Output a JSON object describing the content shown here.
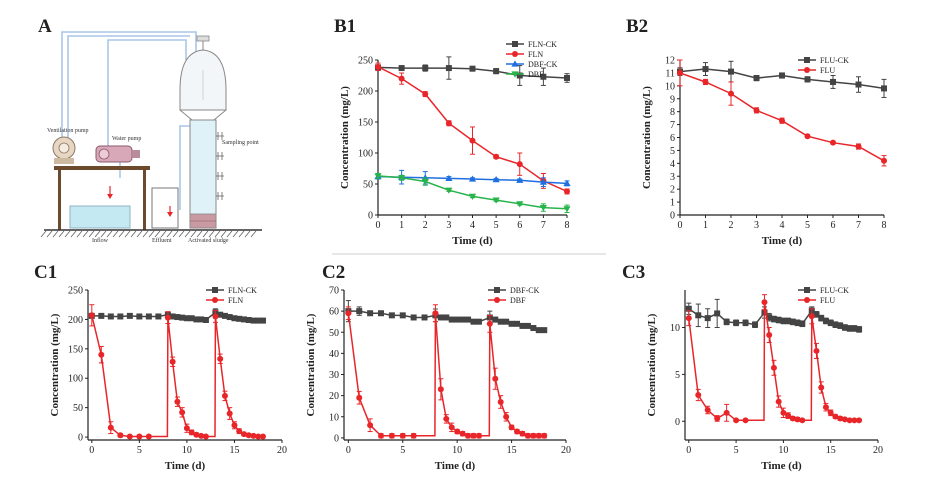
{
  "colors": {
    "black": "#444444",
    "red": "#e8262a",
    "blue": "#1f6fe0",
    "green": "#27b44a"
  },
  "schematic": {
    "label": "A",
    "texts": {
      "ventilation": "Ventilation pump",
      "water": "Water pump",
      "sampling": "Sampling point",
      "inflow": "Inflow",
      "effluent": "Effluent",
      "sludge": "Activated sludge"
    }
  },
  "chart_data": [
    {
      "id": "B1",
      "label": "B1",
      "type": "line",
      "xlabel": "Time (d)",
      "ylabel": "Concentration (mg/L)",
      "xlim": [
        0,
        8
      ],
      "ylim": [
        0,
        250
      ],
      "xticks": [
        0,
        1,
        2,
        3,
        4,
        5,
        6,
        7,
        8
      ],
      "yticks": [
        0,
        50,
        100,
        150,
        200,
        250
      ],
      "legend_position": "top-right",
      "series": [
        {
          "name": "FLN-CK",
          "color": "#444444",
          "marker": "square",
          "x": [
            0,
            1,
            2,
            3,
            4,
            5,
            6,
            7,
            8
          ],
          "y": [
            238,
            237,
            237,
            237,
            236,
            232,
            225,
            223,
            221
          ],
          "err": [
            4,
            3,
            5,
            18,
            3,
            4,
            16,
            14,
            7
          ]
        },
        {
          "name": "FLN",
          "color": "#e8262a",
          "marker": "circle",
          "x": [
            0,
            1,
            2,
            3,
            4,
            5,
            6,
            7,
            8
          ],
          "y": [
            239,
            220,
            195,
            148,
            120,
            94,
            82,
            55,
            38
          ],
          "err": [
            6,
            9,
            4,
            4,
            22,
            3,
            18,
            12,
            4
          ]
        },
        {
          "name": "DBF-CK",
          "color": "#1f6fe0",
          "marker": "triangle-up",
          "x": [
            0,
            1,
            2,
            3,
            4,
            5,
            6,
            7,
            8
          ],
          "y": [
            62,
            61,
            60,
            59,
            58,
            57,
            56,
            53,
            51
          ],
          "err": [
            4,
            11,
            10,
            3,
            2,
            2,
            2,
            7,
            4
          ]
        },
        {
          "name": "DBF",
          "color": "#27b44a",
          "marker": "triangle-down",
          "x": [
            0,
            1,
            2,
            3,
            4,
            5,
            6,
            7,
            8
          ],
          "y": [
            63,
            60,
            54,
            40,
            30,
            24,
            18,
            12,
            10
          ],
          "err": [
            4,
            4,
            6,
            2,
            2,
            2,
            2,
            6,
            6
          ]
        }
      ]
    },
    {
      "id": "B2",
      "label": "B2",
      "type": "line",
      "xlabel": "Time (d)",
      "ylabel": "Concentration (mg/L)",
      "xlim": [
        0,
        8
      ],
      "ylim": [
        0,
        12
      ],
      "xticks": [
        0,
        1,
        2,
        3,
        4,
        5,
        6,
        7,
        8
      ],
      "yticks": [
        0,
        1,
        2,
        3,
        4,
        5,
        6,
        7,
        8,
        9,
        10,
        11,
        12
      ],
      "legend_position": "top-right",
      "series": [
        {
          "name": "FLU-CK",
          "color": "#444444",
          "marker": "square",
          "x": [
            0,
            1,
            2,
            3,
            4,
            5,
            6,
            7,
            8
          ],
          "y": [
            11.1,
            11.3,
            11.1,
            10.6,
            10.8,
            10.5,
            10.3,
            10.1,
            9.8
          ],
          "err": [
            0.3,
            0.5,
            0.8,
            0.2,
            0.2,
            0.2,
            0.5,
            0.6,
            0.7
          ]
        },
        {
          "name": "FLU",
          "color": "#e8262a",
          "marker": "circle",
          "x": [
            0,
            1,
            2,
            3,
            4,
            5,
            6,
            7,
            8
          ],
          "y": [
            11.0,
            10.3,
            9.4,
            8.1,
            7.3,
            6.1,
            5.6,
            5.3,
            4.2
          ],
          "err": [
            1.0,
            0.2,
            0.9,
            0.2,
            0.2,
            0.1,
            0.1,
            0.2,
            0.4
          ]
        }
      ]
    },
    {
      "id": "C1",
      "label": "C1",
      "type": "line",
      "xlabel": "Time (d)",
      "ylabel": "Concentration (mg/L)",
      "xlim": [
        -0.4,
        20
      ],
      "ylim": [
        -5,
        250
      ],
      "xticks": [
        0,
        5,
        10,
        15,
        20
      ],
      "yticks": [
        0,
        50,
        100,
        150,
        200,
        250
      ],
      "legend_position": "top-right",
      "series": [
        {
          "name": "FLN-CK",
          "color": "#444444",
          "marker": "square",
          "x": [
            0,
            1,
            2,
            3,
            4,
            5,
            6,
            7,
            8,
            8.5,
            9,
            9.5,
            10,
            10.5,
            11,
            11.5,
            12,
            13,
            13.5,
            14,
            14.5,
            15,
            15.5,
            16,
            16.5,
            17,
            17.5,
            18
          ],
          "y": [
            206,
            206,
            205,
            205,
            206,
            205,
            205,
            205,
            208,
            205,
            204,
            203,
            202,
            202,
            200,
            200,
            199,
            212,
            208,
            206,
            204,
            202,
            201,
            200,
            199,
            198,
            198,
            198
          ],
          "err": [
            3,
            2,
            2,
            2,
            2,
            2,
            2,
            2,
            5,
            3,
            2,
            2,
            2,
            2,
            2,
            2,
            2,
            6,
            3,
            2,
            2,
            2,
            2,
            2,
            2,
            2,
            2,
            2
          ]
        },
        {
          "name": "FLN",
          "color": "#e8262a",
          "marker": "circle",
          "x": [
            0,
            1,
            2,
            3,
            4,
            5,
            6,
            7.95,
            8,
            8.5,
            9,
            9.5,
            10,
            10.5,
            11,
            11.5,
            12,
            12.95,
            13,
            13.5,
            14,
            14.5,
            15,
            15.5,
            16,
            16.5,
            17,
            17.5,
            18
          ],
          "y": [
            207,
            140,
            16,
            3,
            1,
            1,
            1,
            1,
            203,
            128,
            60,
            42,
            15,
            8,
            4,
            2,
            1,
            1,
            205,
            133,
            70,
            40,
            20,
            10,
            5,
            3,
            2,
            1,
            1
          ],
          "err": [
            18,
            14,
            10,
            3,
            2,
            2,
            2,
            0,
            10,
            8,
            8,
            8,
            7,
            4,
            3,
            2,
            2,
            0,
            10,
            8,
            8,
            10,
            6,
            4,
            3,
            2,
            2,
            2,
            2
          ]
        }
      ]
    },
    {
      "id": "C2",
      "label": "C2",
      "type": "line",
      "xlabel": "Time (d)",
      "ylabel": "Concentration (mg/L)",
      "xlim": [
        -0.4,
        20
      ],
      "ylim": [
        -1,
        70
      ],
      "xticks": [
        0,
        5,
        10,
        15,
        20
      ],
      "yticks": [
        0,
        10,
        20,
        30,
        40,
        50,
        60,
        70
      ],
      "legend_position": "top-right",
      "series": [
        {
          "name": "DBF-CK",
          "color": "#444444",
          "marker": "square",
          "x": [
            0,
            1,
            2,
            3,
            4,
            5,
            6,
            7,
            8,
            8.5,
            9,
            9.5,
            10,
            10.5,
            11,
            11.5,
            12,
            13,
            13.5,
            14,
            14.5,
            15,
            15.5,
            16,
            16.5,
            17,
            17.5,
            18
          ],
          "y": [
            60,
            60,
            59,
            59,
            58,
            58,
            57,
            57,
            58,
            57,
            57,
            56,
            56,
            56,
            56,
            55,
            55,
            57,
            56,
            55,
            55,
            54,
            54,
            53,
            53,
            52,
            51,
            51
          ],
          "err": [
            5,
            2,
            1,
            1,
            1,
            1,
            1,
            1,
            3,
            1,
            1,
            1,
            1,
            1,
            1,
            1,
            1,
            3,
            1,
            1,
            1,
            1,
            1,
            1,
            1,
            1,
            1,
            1
          ]
        },
        {
          "name": "DBF",
          "color": "#e8262a",
          "marker": "circle",
          "x": [
            0,
            1,
            2,
            3,
            4,
            5,
            6,
            7.95,
            8,
            8.5,
            9,
            9.5,
            10,
            10.5,
            11,
            11.5,
            12,
            12.95,
            13,
            13.5,
            14,
            14.5,
            15,
            15.5,
            16,
            16.5,
            17,
            17.5,
            18
          ],
          "y": [
            59,
            19,
            6,
            1,
            1,
            1,
            1,
            1,
            59,
            23,
            9,
            5,
            3,
            2,
            1,
            1,
            1,
            1,
            54,
            28,
            17,
            10,
            5,
            3,
            2,
            1,
            1,
            1,
            1
          ],
          "err": [
            3,
            3,
            3,
            1,
            1,
            1,
            1,
            0,
            4,
            5,
            2,
            2,
            1,
            1,
            1,
            1,
            1,
            0,
            4,
            5,
            3,
            2,
            1,
            1,
            1,
            1,
            1,
            1,
            1
          ]
        }
      ]
    },
    {
      "id": "C3",
      "label": "C3",
      "type": "line",
      "xlabel": "Time (d)",
      "ylabel": "Concentration (mg/L)",
      "xlim": [
        -0.4,
        20
      ],
      "ylim": [
        -2,
        14
      ],
      "xticks": [
        0,
        5,
        10,
        15,
        20
      ],
      "yticks": [
        0,
        5,
        10
      ],
      "legend_position": "top-right",
      "series": [
        {
          "name": "FLU-CK",
          "color": "#444444",
          "marker": "square",
          "x": [
            0,
            1,
            2,
            3,
            4,
            5,
            6,
            7,
            8,
            8.5,
            9,
            9.5,
            10,
            10.5,
            11,
            11.5,
            12,
            13,
            13.5,
            14,
            14.5,
            15,
            15.5,
            16,
            16.5,
            17,
            17.5,
            18
          ],
          "y": [
            12.0,
            11.3,
            11.0,
            11.5,
            10.6,
            10.5,
            10.5,
            10.3,
            11.6,
            11.1,
            10.9,
            10.8,
            10.7,
            10.7,
            10.6,
            10.5,
            10.4,
            11.8,
            11.4,
            11.0,
            10.7,
            10.5,
            10.3,
            10.2,
            10.0,
            9.9,
            9.9,
            9.8
          ],
          "err": [
            0.6,
            1.2,
            1.0,
            1.5,
            0.3,
            0.3,
            0.3,
            0.3,
            0.6,
            0.4,
            0.3,
            0.3,
            0.3,
            0.3,
            0.3,
            0.3,
            0.3,
            0.4,
            0.3,
            0.3,
            0.3,
            0.3,
            0.3,
            0.3,
            0.3,
            0.3,
            0.3,
            0.3
          ]
        },
        {
          "name": "FLU",
          "color": "#e8262a",
          "marker": "circle",
          "x": [
            0,
            1,
            2,
            3,
            4,
            5,
            6,
            7.95,
            8,
            8.5,
            9,
            9.5,
            10,
            10.5,
            11,
            11.5,
            12,
            12.95,
            13,
            13.5,
            14,
            14.5,
            15,
            15.5,
            16,
            16.5,
            17,
            17.5,
            18
          ],
          "y": [
            11.0,
            2.8,
            1.2,
            0.3,
            0.9,
            0.1,
            0.1,
            0.1,
            12.7,
            9.2,
            5.7,
            2.1,
            0.9,
            0.6,
            0.3,
            0.2,
            0.1,
            0.1,
            11.2,
            7.5,
            3.6,
            1.5,
            0.9,
            0.5,
            0.3,
            0.2,
            0.1,
            0.1,
            0.1
          ],
          "err": [
            0.8,
            0.6,
            0.4,
            0.3,
            0.9,
            0.1,
            0.1,
            0,
            0.8,
            0.8,
            0.8,
            0.6,
            0.5,
            0.3,
            0.2,
            0.2,
            0.1,
            0,
            0.8,
            0.8,
            0.6,
            0.4,
            0.3,
            0.2,
            0.2,
            0.1,
            0.1,
            0.1,
            0.1
          ]
        }
      ]
    }
  ]
}
